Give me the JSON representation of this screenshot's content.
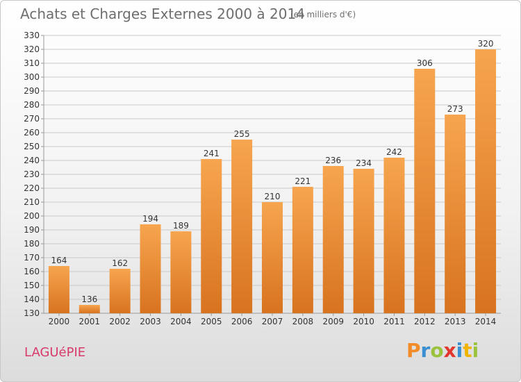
{
  "header": {
    "title": "Achats et Charges Externes 2000 à 2014",
    "subtitle": "(en milliers d'€)"
  },
  "footer": {
    "town": "LAGUéPIE",
    "logo_letters": [
      {
        "char": "P",
        "color": "#f28c28"
      },
      {
        "char": "r",
        "color": "#3a8fd1"
      },
      {
        "char": "o",
        "color": "#9ac23c"
      },
      {
        "char": "x",
        "color": "#e2372e"
      },
      {
        "char": "i",
        "color": "#3a8fd1"
      },
      {
        "char": "t",
        "color": "#f0b400"
      },
      {
        "char": "i",
        "color": "#9ac23c"
      }
    ]
  },
  "colors": {
    "bar_top": "#f7a54f",
    "bar_bottom": "#d8731f",
    "grid": "#c9c9c9",
    "text": "#333333"
  },
  "chart_data": {
    "type": "bar",
    "title": "Achats et Charges Externes 2000 à 2014",
    "subtitle": "(en milliers d'€)",
    "categories": [
      "2000",
      "2001",
      "2002",
      "2003",
      "2004",
      "2005",
      "2006",
      "2007",
      "2008",
      "2009",
      "2010",
      "2011",
      "2012",
      "2013",
      "2014"
    ],
    "values": [
      164,
      136,
      162,
      194,
      189,
      241,
      255,
      210,
      221,
      236,
      234,
      242,
      306,
      273,
      320
    ],
    "ylim": [
      130,
      330
    ],
    "ytick_step": 10,
    "grid": true,
    "data_labels": true
  }
}
